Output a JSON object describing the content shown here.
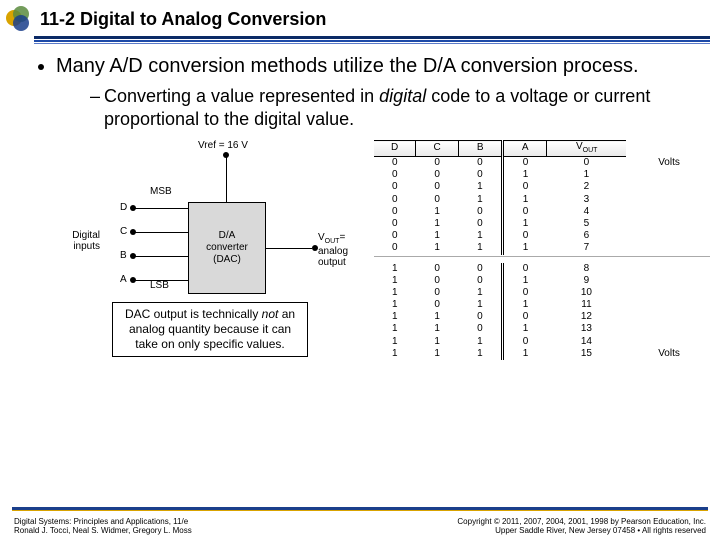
{
  "header": {
    "title": "11-2 Digital to Analog Conversion"
  },
  "bullets": {
    "main": "Many A/D conversion methods utilize the D/A conversion process.",
    "sub_pre": "Converting a value represented in ",
    "sub_em": "digital",
    "sub_post": " code to a voltage or current proportional to the digital value."
  },
  "diagram": {
    "vref": "Vref = 16 V",
    "msb": "MSB",
    "lsb": "LSB",
    "inputs_label": "Digital inputs",
    "bits": [
      "D",
      "C",
      "B",
      "A"
    ],
    "dac_line1": "D/A",
    "dac_line2": "converter",
    "dac_line3": "(DAC)",
    "vout_pre": "V",
    "vout_sub": "OUT",
    "vout_eq": "=",
    "vout_line2": "analog",
    "vout_line3": "output",
    "note_pre": "DAC output is technically ",
    "note_em": "not",
    "note_post": " an analog quantity because it can take on only specific values."
  },
  "truth": {
    "headers": [
      "D",
      "C",
      "B",
      "A",
      "VOUT"
    ],
    "units_top": "Volts",
    "units_bottom": "Volts",
    "rows1": [
      {
        "d": "0",
        "c": "0",
        "b": "0",
        "a": "0",
        "v": "0"
      },
      {
        "d": "0",
        "c": "0",
        "b": "0",
        "a": "1",
        "v": "1"
      },
      {
        "d": "0",
        "c": "0",
        "b": "1",
        "a": "0",
        "v": "2"
      },
      {
        "d": "0",
        "c": "0",
        "b": "1",
        "a": "1",
        "v": "3"
      },
      {
        "d": "0",
        "c": "1",
        "b": "0",
        "a": "0",
        "v": "4"
      },
      {
        "d": "0",
        "c": "1",
        "b": "0",
        "a": "1",
        "v": "5"
      },
      {
        "d": "0",
        "c": "1",
        "b": "1",
        "a": "0",
        "v": "6"
      },
      {
        "d": "0",
        "c": "1",
        "b": "1",
        "a": "1",
        "v": "7"
      }
    ],
    "rows2": [
      {
        "d": "1",
        "c": "0",
        "b": "0",
        "a": "0",
        "v": "8"
      },
      {
        "d": "1",
        "c": "0",
        "b": "0",
        "a": "1",
        "v": "9"
      },
      {
        "d": "1",
        "c": "0",
        "b": "1",
        "a": "0",
        "v": "10"
      },
      {
        "d": "1",
        "c": "0",
        "b": "1",
        "a": "1",
        "v": "11"
      },
      {
        "d": "1",
        "c": "1",
        "b": "0",
        "a": "0",
        "v": "12"
      },
      {
        "d": "1",
        "c": "1",
        "b": "0",
        "a": "1",
        "v": "13"
      },
      {
        "d": "1",
        "c": "1",
        "b": "1",
        "a": "0",
        "v": "14"
      },
      {
        "d": "1",
        "c": "1",
        "b": "1",
        "a": "1",
        "v": "15"
      }
    ]
  },
  "footer": {
    "left1": "Digital Systems: Principles and Applications, 11/e",
    "left2": "Ronald J. Tocci, Neal S. Widmer, Gregory L. Moss",
    "right1": "Copyright © 2011, 2007, 2004, 2001, 1998 by Pearson Education, Inc.",
    "right2": "Upper Saddle River, New Jersey 07458 • All rights reserved"
  },
  "colors": {
    "heading_rule": "#0b2a66",
    "accent": "#1b3f8b"
  }
}
